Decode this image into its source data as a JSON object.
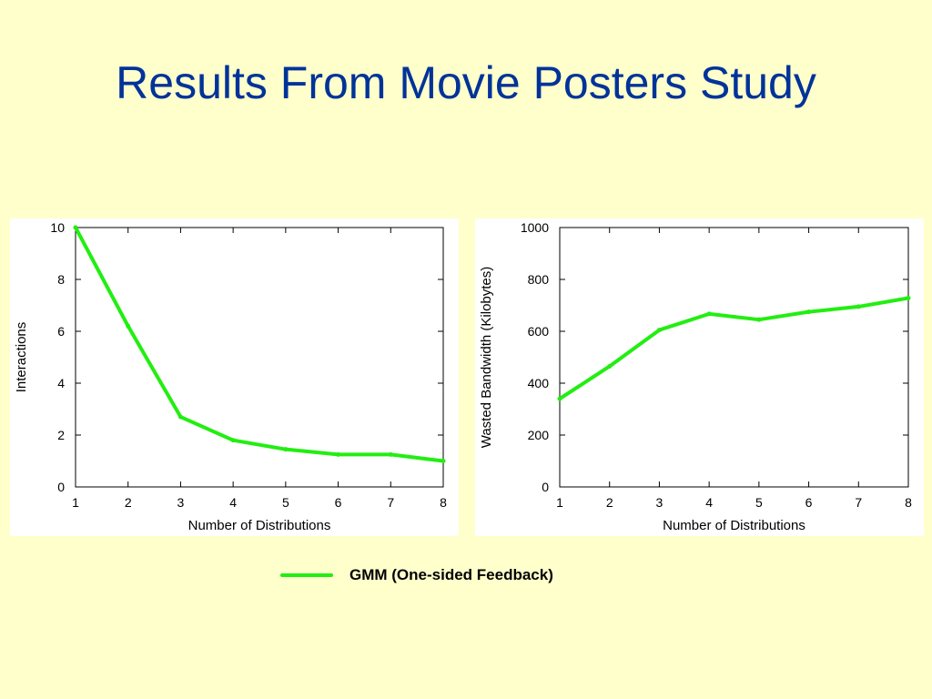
{
  "slide": {
    "title": "Results From Movie Posters Study"
  },
  "colors": {
    "background": "#ffffcc",
    "title": "#003399",
    "series": "#22ee11"
  },
  "legend": {
    "label": "GMM (One-sided Feedback)"
  },
  "chart_data": [
    {
      "type": "line",
      "xlabel": "Number of Distributions",
      "ylabel": "Interactions",
      "xlim": [
        1,
        8
      ],
      "ylim": [
        0,
        10
      ],
      "xticks": [
        "1",
        "2",
        "3",
        "4",
        "5",
        "6",
        "7",
        "8"
      ],
      "yticks": [
        "0",
        "2",
        "4",
        "6",
        "8",
        "10"
      ],
      "grid": false,
      "series": [
        {
          "name": "GMM (One-sided Feedback)",
          "x": [
            1,
            2,
            3,
            4,
            5,
            6,
            7,
            8
          ],
          "values": [
            10,
            6.2,
            2.7,
            1.8,
            1.45,
            1.25,
            1.25,
            1.0
          ]
        }
      ]
    },
    {
      "type": "line",
      "xlabel": "Number of Distributions",
      "ylabel": "Wasted Bandwidth (Kilobytes)",
      "xlim": [
        1,
        8
      ],
      "ylim": [
        0,
        1000
      ],
      "xticks": [
        "1",
        "2",
        "3",
        "4",
        "5",
        "6",
        "7",
        "8"
      ],
      "yticks": [
        "0",
        "200",
        "400",
        "600",
        "800",
        "1000"
      ],
      "grid": false,
      "series": [
        {
          "name": "GMM (One-sided Feedback)",
          "x": [
            1,
            2,
            3,
            4,
            5,
            6,
            7,
            8
          ],
          "values": [
            340,
            465,
            605,
            667,
            645,
            675,
            695,
            728
          ]
        }
      ]
    }
  ]
}
